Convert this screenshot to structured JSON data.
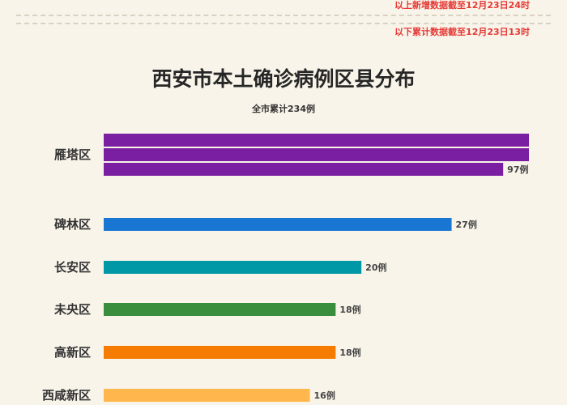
{
  "notes": {
    "upper": "以上新增数据截至12月23日24时",
    "lower": "以下累计数据截至12月23日13时"
  },
  "chart_data": {
    "type": "bar",
    "orientation": "horizontal",
    "title": "西安市本土确诊病例区县分布",
    "subtitle": "全市累计234例",
    "unit": "例",
    "wrap_max": 33,
    "categories": [
      "雁塔区",
      "碑林区",
      "长安区",
      "未央区",
      "高新区",
      "西咸新区"
    ],
    "values": [
      97,
      27,
      20,
      18,
      18,
      16
    ],
    "value_labels": [
      "97例",
      "27例",
      "20例",
      "18例",
      "18例",
      "16例"
    ],
    "colors": [
      "#7b1fa2",
      "#1976d2",
      "#0097a7",
      "#388e3c",
      "#f57c00",
      "#ffb74d"
    ]
  }
}
